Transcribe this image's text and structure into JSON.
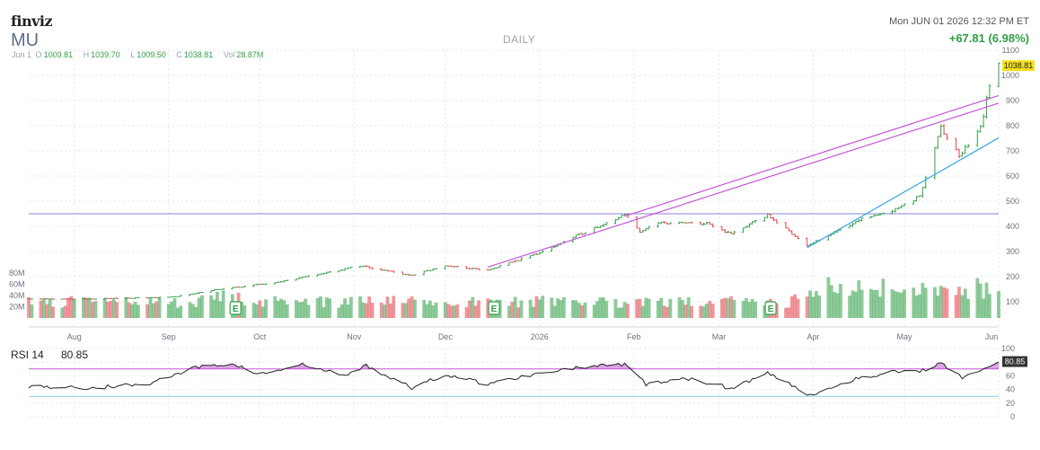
{
  "header": {
    "logo": "finviz",
    "ticker": "MU",
    "period": "DAILY",
    "datetime": "Mon JUN 01 2026 12:32 PM ET",
    "change": "+67.81 (6.98%)",
    "ohlc": {
      "date": "Jun 1",
      "open_key": "O",
      "open": "1009.81",
      "high_key": "H",
      "high": "1039.70",
      "low_key": "L",
      "low": "1009.50",
      "close_key": "C",
      "close": "1038.81",
      "vol_key": "Vol",
      "vol": "28.87M"
    },
    "last_price_label": "1038.81"
  },
  "colors": {
    "up": "#2f9e45",
    "down": "#e0424b",
    "trendline": "#c456d6",
    "support": "#37a7e0",
    "horizontal_level": "#9f9adf",
    "price_badge": "#f5e01b"
  },
  "chart_data": [
    {
      "type": "candlestick",
      "title": "DAILY",
      "x_tick_labels": [
        "Aug",
        "Sep",
        "Oct",
        "Nov",
        "Dec",
        "2026",
        "Feb",
        "Mar",
        "Apr",
        "May",
        "Jun"
      ],
      "y_tick_labels": [
        "1100",
        "1000",
        "900",
        "800",
        "700",
        "600",
        "500",
        "400",
        "300",
        "200",
        "100"
      ],
      "ylim": [
        100,
        1100
      ],
      "grid": true,
      "horizontal_level": 450,
      "last_price": 1038.81,
      "earnings_markers": [
        "Sep",
        "Dec",
        "Mar"
      ],
      "earnings_marker_label": "E",
      "anchors": [
        {
          "date": "2025-07-17",
          "close": 112
        },
        {
          "date": "2025-08-01",
          "close": 110
        },
        {
          "date": "2025-08-20",
          "close": 115
        },
        {
          "date": "2025-09-02",
          "close": 118
        },
        {
          "date": "2025-09-15",
          "close": 145
        },
        {
          "date": "2025-09-25",
          "close": 160
        },
        {
          "date": "2025-10-10",
          "close": 185
        },
        {
          "date": "2025-11-03",
          "close": 243
        },
        {
          "date": "2025-11-20",
          "close": 205
        },
        {
          "date": "2025-12-01",
          "close": 243
        },
        {
          "date": "2025-12-15",
          "close": 225
        },
        {
          "date": "2026-01-02",
          "close": 300
        },
        {
          "date": "2026-01-20",
          "close": 400
        },
        {
          "date": "2026-01-29",
          "close": 445
        },
        {
          "date": "2026-02-03",
          "close": 380
        },
        {
          "date": "2026-02-10",
          "close": 415
        },
        {
          "date": "2026-02-25",
          "close": 410
        },
        {
          "date": "2026-03-05",
          "close": 370
        },
        {
          "date": "2026-03-17",
          "close": 445
        },
        {
          "date": "2026-03-30",
          "close": 325
        },
        {
          "date": "2026-04-15",
          "close": 420
        },
        {
          "date": "2026-04-28",
          "close": 470
        },
        {
          "date": "2026-05-06",
          "close": 520
        },
        {
          "date": "2026-05-13",
          "close": 790
        },
        {
          "date": "2026-05-19",
          "close": 680
        },
        {
          "date": "2026-05-26",
          "close": 790
        },
        {
          "date": "2026-05-29",
          "close": 960
        },
        {
          "date": "2026-06-01",
          "close": 1038.81
        }
      ],
      "trendlines": [
        {
          "name": "upper-1",
          "start": {
            "date": "2025-12-15",
            "value": 238
          },
          "end": {
            "date": "2026-06-01",
            "value": 890
          }
        },
        {
          "name": "upper-2",
          "start": {
            "date": "2026-01-29",
            "value": 440
          },
          "end": {
            "date": "2026-06-01",
            "value": 920
          }
        },
        {
          "name": "support",
          "start": {
            "date": "2026-03-30",
            "value": 315
          },
          "end": {
            "date": "2026-06-01",
            "value": 752
          }
        }
      ]
    },
    {
      "type": "bar",
      "title": "Volume",
      "y_tick_labels": [
        "80M",
        "60M",
        "40M",
        "20M"
      ],
      "ylim": [
        0,
        80
      ],
      "unit": "M",
      "last_value": 28.87
    },
    {
      "type": "line",
      "title": "RSI 14",
      "label": "RSI 14",
      "value": "80.85",
      "value_num": 80.85,
      "y_tick_labels": [
        "100",
        "80",
        "60",
        "40",
        "20",
        "0"
      ],
      "ylim": [
        0,
        100
      ],
      "overbought": 70,
      "oversold": 30,
      "anchors": [
        {
          "date": "2025-07-17",
          "rsi": 45
        },
        {
          "date": "2025-08-05",
          "rsi": 42
        },
        {
          "date": "2025-08-25",
          "rsi": 48
        },
        {
          "date": "2025-09-10",
          "rsi": 72
        },
        {
          "date": "2025-09-22",
          "rsi": 78
        },
        {
          "date": "2025-10-01",
          "rsi": 62
        },
        {
          "date": "2025-10-15",
          "rsi": 76
        },
        {
          "date": "2025-10-29",
          "rsi": 60
        },
        {
          "date": "2025-11-05",
          "rsi": 75
        },
        {
          "date": "2025-11-20",
          "rsi": 42
        },
        {
          "date": "2025-12-01",
          "rsi": 62
        },
        {
          "date": "2025-12-15",
          "rsi": 48
        },
        {
          "date": "2026-01-05",
          "rsi": 68
        },
        {
          "date": "2026-01-20",
          "rsi": 74
        },
        {
          "date": "2026-01-29",
          "rsi": 76
        },
        {
          "date": "2026-02-05",
          "rsi": 48
        },
        {
          "date": "2026-02-20",
          "rsi": 56
        },
        {
          "date": "2026-03-05",
          "rsi": 42
        },
        {
          "date": "2026-03-17",
          "rsi": 64
        },
        {
          "date": "2026-03-31",
          "rsi": 32
        },
        {
          "date": "2026-04-15",
          "rsi": 56
        },
        {
          "date": "2026-04-28",
          "rsi": 66
        },
        {
          "date": "2026-05-08",
          "rsi": 68
        },
        {
          "date": "2026-05-13",
          "rsi": 80
        },
        {
          "date": "2026-05-20",
          "rsi": 58
        },
        {
          "date": "2026-05-27",
          "rsi": 70
        },
        {
          "date": "2026-06-01",
          "rsi": 80.85
        }
      ]
    }
  ]
}
